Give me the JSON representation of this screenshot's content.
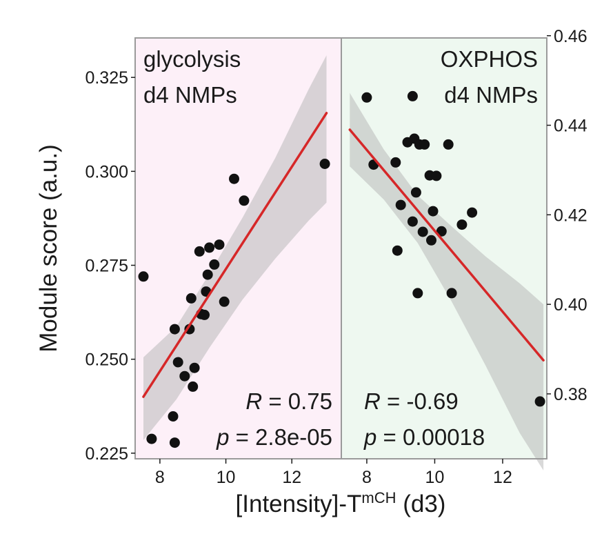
{
  "chart_data": {
    "type": "scatter",
    "ylabel": "Module score (a.u.)",
    "xlabel": {
      "prefix": "[Intensity]-T",
      "superscript": "mCH",
      "suffix": " (d3)"
    },
    "colors": {
      "left_bg": "#fdf0f8",
      "right_bg": "#eef8f0",
      "regression": "#d62728",
      "ci_band": "#b9b9b9",
      "points": "#111111",
      "frame": "#9a9a9a"
    },
    "panels": [
      {
        "id": "glycolysis",
        "title_lines": [
          "glycolysis",
          "d4 NMPs"
        ],
        "xlim": [
          7.25,
          13.5
        ],
        "xticks": [
          8,
          10,
          12
        ],
        "xtick_labels": [
          "8",
          "10",
          "12"
        ],
        "ylim": [
          0.2235,
          0.3355
        ],
        "yticks": [
          0.225,
          0.25,
          0.275,
          0.3,
          0.325
        ],
        "ytick_labels": [
          "0.225",
          "0.250",
          "0.275",
          "0.300",
          "0.325"
        ],
        "R_label": "R",
        "R_value": " = 0.75",
        "p_label": "p",
        "p_value": " = 2.8e-05",
        "fit": {
          "x": [
            7.5,
            13.05
          ],
          "y": [
            0.24,
            0.3155
          ]
        },
        "ci": {
          "x": [
            7.5,
            8.5,
            9.5,
            10.5,
            11.5,
            12.5,
            13.05
          ],
          "upper": [
            0.2505,
            0.2587,
            0.2727,
            0.2876,
            0.3036,
            0.3217,
            0.3309
          ],
          "lower": [
            0.2285,
            0.2393,
            0.253,
            0.2658,
            0.2768,
            0.2868,
            0.2917
          ]
        },
        "points": [
          [
            7.5,
            0.272
          ],
          [
            7.75,
            0.2288
          ],
          [
            8.4,
            0.2348
          ],
          [
            8.45,
            0.2278
          ],
          [
            8.45,
            0.258
          ],
          [
            8.55,
            0.2492
          ],
          [
            8.75,
            0.2455
          ],
          [
            8.9,
            0.258
          ],
          [
            8.95,
            0.2662
          ],
          [
            9.0,
            0.2427
          ],
          [
            9.05,
            0.2477
          ],
          [
            9.2,
            0.2787
          ],
          [
            9.25,
            0.262
          ],
          [
            9.35,
            0.2618
          ],
          [
            9.4,
            0.268
          ],
          [
            9.45,
            0.2725
          ],
          [
            9.5,
            0.2797
          ],
          [
            9.65,
            0.2752
          ],
          [
            9.8,
            0.2805
          ],
          [
            9.95,
            0.2653
          ],
          [
            10.25,
            0.298
          ],
          [
            10.55,
            0.2922
          ],
          [
            13.0,
            0.302
          ]
        ]
      },
      {
        "id": "oxphos",
        "title_lines": [
          "OXPHOS",
          "d4 NMPs"
        ],
        "xlim": [
          7.25,
          13.3
        ],
        "xticks": [
          8,
          10,
          12
        ],
        "xtick_labels": [
          "8",
          "10",
          "12"
        ],
        "ylim": [
          0.3655,
          0.4595
        ],
        "yticks": [
          0.38,
          0.4,
          0.42,
          0.44,
          0.46
        ],
        "ytick_labels": [
          "0.38",
          "0.40",
          "0.42",
          "0.44",
          "0.46"
        ],
        "R_label": "R",
        "R_value": " = -0.69",
        "p_label": "p",
        "p_value": " = 0.00018",
        "fit": {
          "x": [
            7.5,
            13.2
          ],
          "y": [
            0.439,
            0.3875
          ]
        },
        "ci": {
          "x": [
            7.5,
            8.5,
            9.5,
            10.5,
            11.5,
            12.5,
            13.2
          ],
          "upper": [
            0.4472,
            0.4346,
            0.4243,
            0.4174,
            0.4107,
            0.4047,
            0.4
          ],
          "lower": [
            0.4308,
            0.4234,
            0.4137,
            0.4006,
            0.3863,
            0.3713,
            0.3629
          ]
        },
        "points": [
          [
            8.0,
            0.4462
          ],
          [
            8.2,
            0.4312
          ],
          [
            8.85,
            0.4317
          ],
          [
            8.9,
            0.412
          ],
          [
            9.0,
            0.4222
          ],
          [
            9.2,
            0.4362
          ],
          [
            9.35,
            0.4185
          ],
          [
            9.4,
            0.437
          ],
          [
            9.35,
            0.4465
          ],
          [
            9.45,
            0.425
          ],
          [
            9.5,
            0.4025
          ],
          [
            9.55,
            0.4357
          ],
          [
            9.65,
            0.4162
          ],
          [
            9.7,
            0.4357
          ],
          [
            9.85,
            0.4288
          ],
          [
            9.9,
            0.4143
          ],
          [
            9.95,
            0.4208
          ],
          [
            10.05,
            0.4287
          ],
          [
            10.2,
            0.4163
          ],
          [
            10.4,
            0.4357
          ],
          [
            10.5,
            0.4025
          ],
          [
            10.8,
            0.4178
          ],
          [
            11.1,
            0.4205
          ],
          [
            13.1,
            0.3783
          ]
        ]
      }
    ]
  }
}
